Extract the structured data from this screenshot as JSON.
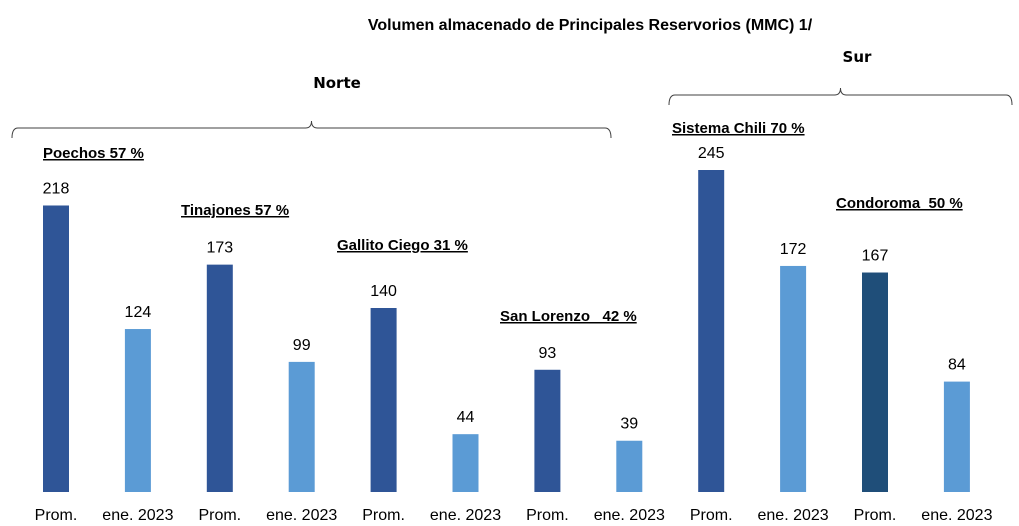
{
  "chart_data": {
    "type": "bar",
    "title": "Volumen almacenado de Principales Reservorios (MMC) 1/",
    "groups": [
      {
        "label": "Norte",
        "reservoirs": [
          {
            "label": "Poechos 57 %",
            "categories": [
              "Prom.",
              "ene. 2023"
            ],
            "values": [
              218,
              124
            ],
            "colors": [
              "#2F5597",
              "#5B9BD5"
            ]
          },
          {
            "label": "Tinajones 57 %",
            "categories": [
              "Prom.",
              "ene. 2023"
            ],
            "values": [
              173,
              99
            ],
            "colors": [
              "#2F5597",
              "#5B9BD5"
            ]
          },
          {
            "label": "Gallito Ciego 31 %",
            "categories": [
              "Prom.",
              "ene. 2023"
            ],
            "values": [
              140,
              44
            ],
            "colors": [
              "#2F5597",
              "#5B9BD5"
            ]
          },
          {
            "label": "San Lorenzo   42 %",
            "categories": [
              "Prom.",
              "ene. 2023"
            ],
            "values": [
              93,
              39
            ],
            "colors": [
              "#2F5597",
              "#5B9BD5"
            ]
          }
        ]
      },
      {
        "label": "Sur",
        "reservoirs": [
          {
            "label": "Sistema Chili 70 %",
            "categories": [
              "Prom.",
              "ene. 2023"
            ],
            "values": [
              245,
              172
            ],
            "colors": [
              "#2F5597",
              "#5B9BD5"
            ]
          },
          {
            "label": "Condoroma  50 %",
            "categories": [
              "Prom.",
              "ene. 2023"
            ],
            "values": [
              167,
              84
            ],
            "colors": [
              "#1F4E79",
              "#5B9BD5"
            ]
          }
        ]
      }
    ]
  }
}
